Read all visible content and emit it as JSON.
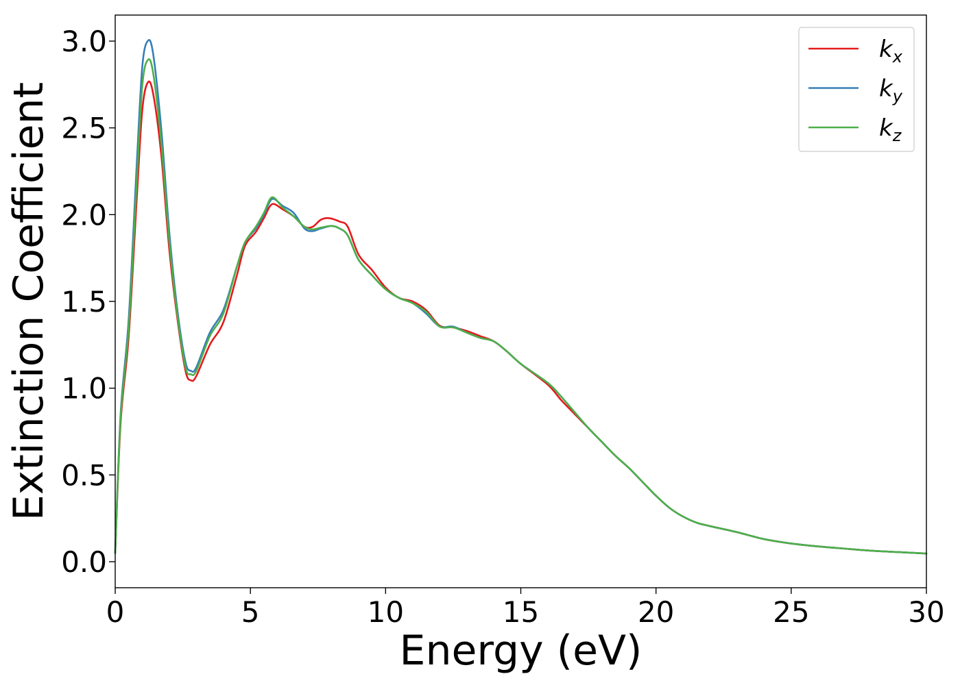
{
  "chart_data": {
    "type": "line",
    "title": "",
    "xlabel": "Energy (eV)",
    "ylabel": "Extinction Coefficient",
    "xlim": [
      0,
      30
    ],
    "ylim": [
      -0.15,
      3.15
    ],
    "xticks": [
      0,
      5,
      10,
      15,
      20,
      25,
      30
    ],
    "xtick_labels": [
      "0",
      "5",
      "10",
      "15",
      "20",
      "25",
      "30"
    ],
    "yticks": [
      0.0,
      0.5,
      1.0,
      1.5,
      2.0,
      2.5,
      3.0
    ],
    "ytick_labels": [
      "0.0",
      "0.5",
      "1.0",
      "1.5",
      "2.0",
      "2.5",
      "3.0"
    ],
    "grid": false,
    "legend_position": "top-right",
    "colors": {
      "kx": "#e41a1c",
      "ky": "#377eb8",
      "kz": "#4daf4a"
    },
    "series": [
      {
        "key": "kx",
        "name_base": "k",
        "name_sub": "x",
        "points": [
          [
            0,
            0.05
          ],
          [
            0.2,
            0.8
          ],
          [
            0.5,
            1.3
          ],
          [
            0.8,
            2.1
          ],
          [
            1.0,
            2.6
          ],
          [
            1.2,
            2.76
          ],
          [
            1.4,
            2.7
          ],
          [
            1.7,
            2.35
          ],
          [
            2.0,
            1.8
          ],
          [
            2.3,
            1.4
          ],
          [
            2.6,
            1.1
          ],
          [
            2.8,
            1.045
          ],
          [
            3.0,
            1.07
          ],
          [
            3.5,
            1.25
          ],
          [
            4.0,
            1.38
          ],
          [
            4.5,
            1.65
          ],
          [
            4.8,
            1.82
          ],
          [
            5.2,
            1.9
          ],
          [
            5.5,
            1.98
          ],
          [
            5.8,
            2.06
          ],
          [
            6.2,
            2.03
          ],
          [
            6.6,
            1.99
          ],
          [
            7.0,
            1.93
          ],
          [
            7.3,
            1.93
          ],
          [
            7.6,
            1.97
          ],
          [
            7.9,
            1.98
          ],
          [
            8.3,
            1.96
          ],
          [
            8.6,
            1.93
          ],
          [
            9.0,
            1.77
          ],
          [
            9.5,
            1.68
          ],
          [
            10.0,
            1.58
          ],
          [
            10.5,
            1.52
          ],
          [
            11.0,
            1.5
          ],
          [
            11.5,
            1.45
          ],
          [
            12.0,
            1.36
          ],
          [
            12.5,
            1.35
          ],
          [
            13.0,
            1.33
          ],
          [
            13.5,
            1.3
          ],
          [
            14.0,
            1.27
          ],
          [
            14.5,
            1.21
          ],
          [
            15.0,
            1.14
          ],
          [
            16.0,
            1.02
          ],
          [
            16.5,
            0.93
          ],
          [
            17.0,
            0.85
          ],
          [
            17.5,
            0.77
          ],
          [
            18.0,
            0.69
          ],
          [
            18.5,
            0.61
          ],
          [
            19.0,
            0.54
          ],
          [
            19.5,
            0.46
          ],
          [
            20.0,
            0.38
          ],
          [
            20.5,
            0.31
          ],
          [
            21.0,
            0.26
          ],
          [
            21.5,
            0.225
          ],
          [
            22.0,
            0.205
          ],
          [
            23.0,
            0.17
          ],
          [
            24.0,
            0.13
          ],
          [
            25.0,
            0.105
          ],
          [
            26.0,
            0.088
          ],
          [
            27.0,
            0.075
          ],
          [
            28.0,
            0.063
          ],
          [
            29.0,
            0.055
          ],
          [
            30.0,
            0.047
          ]
        ]
      },
      {
        "key": "ky",
        "name_base": "k",
        "name_sub": "y",
        "points": [
          [
            0,
            0.05
          ],
          [
            0.2,
            0.85
          ],
          [
            0.5,
            1.4
          ],
          [
            0.8,
            2.3
          ],
          [
            1.0,
            2.85
          ],
          [
            1.2,
            3.0
          ],
          [
            1.4,
            2.93
          ],
          [
            1.7,
            2.5
          ],
          [
            2.0,
            1.9
          ],
          [
            2.3,
            1.45
          ],
          [
            2.6,
            1.15
          ],
          [
            2.8,
            1.1
          ],
          [
            3.0,
            1.12
          ],
          [
            3.5,
            1.32
          ],
          [
            4.0,
            1.45
          ],
          [
            4.5,
            1.7
          ],
          [
            4.8,
            1.84
          ],
          [
            5.2,
            1.92
          ],
          [
            5.5,
            2.0
          ],
          [
            5.8,
            2.09
          ],
          [
            6.2,
            2.05
          ],
          [
            6.6,
            2.01
          ],
          [
            7.0,
            1.92
          ],
          [
            7.3,
            1.905
          ],
          [
            7.6,
            1.92
          ],
          [
            8.0,
            1.935
          ],
          [
            8.3,
            1.92
          ],
          [
            8.6,
            1.88
          ],
          [
            9.0,
            1.74
          ],
          [
            9.5,
            1.65
          ],
          [
            10.0,
            1.57
          ],
          [
            10.5,
            1.52
          ],
          [
            11.0,
            1.49
          ],
          [
            11.5,
            1.43
          ],
          [
            12.0,
            1.355
          ],
          [
            12.5,
            1.355
          ],
          [
            13.0,
            1.32
          ],
          [
            13.5,
            1.29
          ],
          [
            14.0,
            1.27
          ],
          [
            14.5,
            1.21
          ],
          [
            15.0,
            1.14
          ],
          [
            16.0,
            1.03
          ],
          [
            16.5,
            0.95
          ],
          [
            17.0,
            0.86
          ],
          [
            17.5,
            0.77
          ],
          [
            18.0,
            0.69
          ],
          [
            18.5,
            0.61
          ],
          [
            19.0,
            0.54
          ],
          [
            19.5,
            0.46
          ],
          [
            20.0,
            0.38
          ],
          [
            20.5,
            0.31
          ],
          [
            21.0,
            0.26
          ],
          [
            21.5,
            0.225
          ],
          [
            22.0,
            0.205
          ],
          [
            23.0,
            0.17
          ],
          [
            24.0,
            0.13
          ],
          [
            25.0,
            0.105
          ],
          [
            26.0,
            0.088
          ],
          [
            27.0,
            0.075
          ],
          [
            28.0,
            0.063
          ],
          [
            29.0,
            0.055
          ],
          [
            30.0,
            0.047
          ]
        ]
      },
      {
        "key": "kz",
        "name_base": "k",
        "name_sub": "z",
        "points": [
          [
            0,
            0.05
          ],
          [
            0.2,
            0.83
          ],
          [
            0.5,
            1.35
          ],
          [
            0.8,
            2.2
          ],
          [
            1.0,
            2.74
          ],
          [
            1.2,
            2.89
          ],
          [
            1.4,
            2.82
          ],
          [
            1.7,
            2.42
          ],
          [
            2.0,
            1.85
          ],
          [
            2.3,
            1.42
          ],
          [
            2.6,
            1.12
          ],
          [
            2.8,
            1.08
          ],
          [
            3.0,
            1.1
          ],
          [
            3.5,
            1.3
          ],
          [
            4.0,
            1.43
          ],
          [
            4.5,
            1.7
          ],
          [
            4.8,
            1.84
          ],
          [
            5.2,
            1.93
          ],
          [
            5.5,
            2.01
          ],
          [
            5.8,
            2.1
          ],
          [
            6.2,
            2.04
          ],
          [
            6.6,
            1.99
          ],
          [
            7.0,
            1.93
          ],
          [
            7.3,
            1.915
          ],
          [
            7.6,
            1.925
          ],
          [
            8.0,
            1.935
          ],
          [
            8.3,
            1.92
          ],
          [
            8.6,
            1.88
          ],
          [
            9.0,
            1.74
          ],
          [
            9.5,
            1.65
          ],
          [
            10.0,
            1.57
          ],
          [
            10.5,
            1.52
          ],
          [
            11.0,
            1.49
          ],
          [
            11.5,
            1.44
          ],
          [
            12.0,
            1.355
          ],
          [
            12.5,
            1.35
          ],
          [
            13.0,
            1.32
          ],
          [
            13.5,
            1.29
          ],
          [
            14.0,
            1.27
          ],
          [
            14.5,
            1.21
          ],
          [
            15.0,
            1.14
          ],
          [
            16.0,
            1.03
          ],
          [
            16.5,
            0.95
          ],
          [
            17.0,
            0.86
          ],
          [
            17.5,
            0.77
          ],
          [
            18.0,
            0.69
          ],
          [
            18.5,
            0.61
          ],
          [
            19.0,
            0.54
          ],
          [
            19.5,
            0.46
          ],
          [
            20.0,
            0.38
          ],
          [
            20.5,
            0.31
          ],
          [
            21.0,
            0.26
          ],
          [
            21.5,
            0.225
          ],
          [
            22.0,
            0.205
          ],
          [
            23.0,
            0.17
          ],
          [
            24.0,
            0.13
          ],
          [
            25.0,
            0.105
          ],
          [
            26.0,
            0.088
          ],
          [
            27.0,
            0.075
          ],
          [
            28.0,
            0.063
          ],
          [
            29.0,
            0.055
          ],
          [
            30.0,
            0.047
          ]
        ]
      }
    ]
  }
}
